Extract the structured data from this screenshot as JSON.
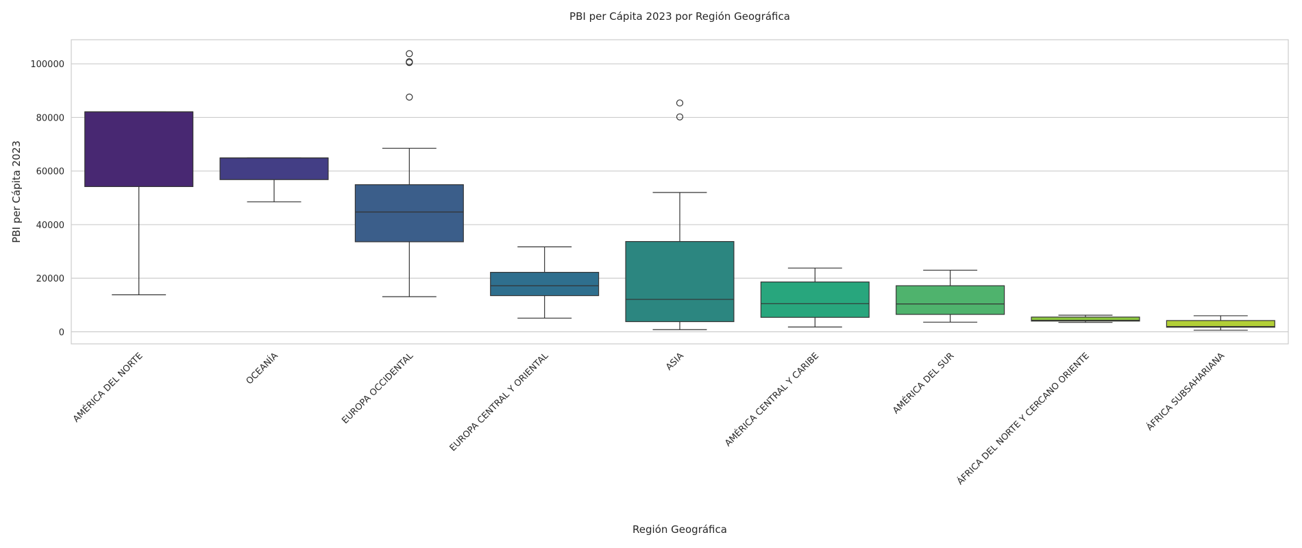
{
  "chart_data": {
    "type": "box",
    "title": "PBI per Cápita 2023 por Región Geográfica",
    "xlabel": "Región Geográfica",
    "ylabel": "PBI per Cápita 2023",
    "ylim": [
      -4500,
      109000
    ],
    "yticks": [
      0,
      20000,
      40000,
      60000,
      80000,
      100000
    ],
    "grid": "horizontal",
    "categories": [
      "AMÉRICA DEL NORTE",
      "OCEANÍA",
      "EUROPA OCCIDENTAL",
      "EUROPA CENTRAL Y ORIENTAL",
      "ASIA",
      "AMÉRICA CENTRAL Y CARIBE",
      "AMÉRICA DEL SUR",
      "ÁFRICA DEL NORTE Y CERCANO ORIENTE",
      "ÁFRICA SUBSAHARIANA"
    ],
    "colors": [
      "#482872",
      "#433e85",
      "#3b5e8a",
      "#2f6f8e",
      "#2c8680",
      "#28a67d",
      "#4fb36d",
      "#8cc63f",
      "#b2cf36"
    ],
    "boxes": [
      {
        "whisker_low": 13800,
        "q1": 54200,
        "median": 82100,
        "q3": 82100,
        "whisker_high": 82100,
        "outliers": []
      },
      {
        "whisker_low": 48500,
        "q1": 56800,
        "median": 64900,
        "q3": 64900,
        "whisker_high": 64900,
        "outliers": []
      },
      {
        "whisker_low": 13100,
        "q1": 33600,
        "median": 44700,
        "q3": 54900,
        "whisker_high": 68500,
        "outliers": [
          87600,
          100500,
          100800,
          103800
        ]
      },
      {
        "whisker_low": 5100,
        "q1": 13500,
        "median": 17200,
        "q3": 22200,
        "whisker_high": 31700,
        "outliers": []
      },
      {
        "whisker_low": 800,
        "q1": 3800,
        "median": 12100,
        "q3": 33700,
        "whisker_high": 52000,
        "outliers": [
          80200,
          85400
        ]
      },
      {
        "whisker_low": 1800,
        "q1": 5400,
        "median": 10500,
        "q3": 18600,
        "whisker_high": 23800,
        "outliers": []
      },
      {
        "whisker_low": 3600,
        "q1": 6500,
        "median": 10400,
        "q3": 17200,
        "whisker_high": 23000,
        "outliers": []
      },
      {
        "whisker_low": 3500,
        "q1": 4000,
        "median": 4300,
        "q3": 5500,
        "whisker_high": 6200,
        "outliers": []
      },
      {
        "whisker_low": 600,
        "q1": 1700,
        "median": 2000,
        "q3": 4200,
        "whisker_high": 6000,
        "outliers": []
      }
    ]
  }
}
